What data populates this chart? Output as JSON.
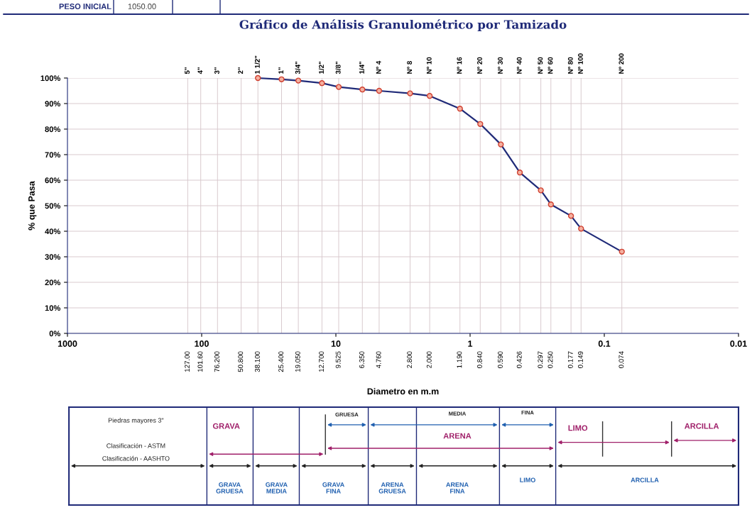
{
  "chart_data": {
    "type": "line",
    "title": "Gráfico de Análisis Granulométrico por Tamizado",
    "xlabel": "Diametro en m.m",
    "ylabel": "% que Pasa",
    "x": [
      38.1,
      25.4,
      19.05,
      12.7,
      9.525,
      6.35,
      4.76,
      2.8,
      2.0,
      1.19,
      0.84,
      0.59,
      0.426,
      0.297,
      0.25,
      0.177,
      0.149,
      0.074
    ],
    "series": [
      {
        "color": "#1f2a78",
        "values": [
          100,
          99.5,
          99,
          98,
          96.5,
          95.5,
          95,
          94,
          93,
          88,
          82,
          74,
          63,
          56,
          50.5,
          46,
          41,
          32
        ]
      }
    ],
    "log": "x",
    "marker": "circle",
    "line_style": "solid",
    "grid": "y",
    "xlim": [
      1000,
      0.01
    ],
    "xticks": [
      1000,
      100,
      10,
      1,
      0.1,
      0.01
    ],
    "ylim": [
      0,
      100
    ],
    "yticks": [
      {
        "value": 0,
        "label": "0%"
      },
      {
        "value": 10,
        "label": "10%"
      },
      {
        "value": 20,
        "label": "20%"
      },
      {
        "value": 30,
        "label": "30%"
      },
      {
        "value": 40,
        "label": "40%"
      },
      {
        "value": 50,
        "label": "50%"
      },
      {
        "value": 60,
        "label": "60%"
      },
      {
        "value": 70,
        "label": "70%"
      },
      {
        "value": 80,
        "label": "80%"
      },
      {
        "value": 90,
        "label": "90%"
      },
      {
        "value": 100,
        "label": "100%"
      }
    ],
    "ref_lines": [
      {
        "axis": "x",
        "value": 127,
        "label": "127.00"
      },
      {
        "axis": "x",
        "value": 101.6,
        "label": "101.60"
      },
      {
        "axis": "x",
        "value": 76.2,
        "label": "76.200"
      },
      {
        "axis": "x",
        "value": 50.8,
        "label": "50.800"
      },
      {
        "axis": "x",
        "value": 38.1,
        "label": "38.100"
      },
      {
        "axis": "x",
        "value": 25.4,
        "label": "25.400"
      },
      {
        "axis": "x",
        "value": 19.05,
        "label": "19.050"
      },
      {
        "axis": "x",
        "value": 12.7,
        "label": "12.700"
      },
      {
        "axis": "x",
        "value": 9.525,
        "label": "9.525"
      },
      {
        "axis": "x",
        "value": 6.35,
        "label": "6.350"
      },
      {
        "axis": "x",
        "value": 4.76,
        "label": "4.760"
      },
      {
        "axis": "x",
        "value": 2.8,
        "label": "2.800"
      },
      {
        "axis": "x",
        "value": 2.0,
        "label": "2.000"
      },
      {
        "axis": "x",
        "value": 1.19,
        "label": "1.190"
      },
      {
        "axis": "x",
        "value": 0.84,
        "label": "0.840"
      },
      {
        "axis": "x",
        "value": 0.59,
        "label": "0.590"
      },
      {
        "axis": "x",
        "value": 0.426,
        "label": "0.426"
      },
      {
        "axis": "x",
        "value": 0.297,
        "label": "0.297"
      },
      {
        "axis": "x",
        "value": 0.25,
        "label": "0.250"
      },
      {
        "axis": "x",
        "value": 0.177,
        "label": "0.177"
      },
      {
        "axis": "x",
        "value": 0.149,
        "label": "0.149"
      },
      {
        "axis": "x",
        "value": 0.074,
        "label": "0.074"
      }
    ],
    "annotations": [
      "PESO INICIAL",
      "1050.00",
      "Piedras mayores 3\"",
      "Clasificación - ASTM",
      "Clasificación - AASHTO",
      "GRUESA",
      "MEDIA",
      "FINA",
      "GRAVA",
      "ARENA",
      "LIMO",
      "ARCILLA",
      "GRAVA GRUESA",
      "GRAVA MEDIA",
      "GRAVA FINA",
      "ARENA GRUESA",
      "ARENA FINA",
      "LIMO",
      "ARCILLA",
      {
        "text": "5\"",
        "x": 127,
        "y": 100
      },
      {
        "text": "4\"",
        "x": 101.6,
        "y": 100
      },
      {
        "text": "3\"",
        "x": 76.2,
        "y": 100
      },
      {
        "text": "2\"",
        "x": 50.8,
        "y": 100
      },
      {
        "text": "1 1/2\"",
        "x": 38.1,
        "y": 100
      },
      {
        "text": "1\"",
        "x": 25.4,
        "y": 100
      },
      {
        "text": "3/4\"",
        "x": 19.05,
        "y": 100
      },
      {
        "text": "1/2\"",
        "x": 12.7,
        "y": 100
      },
      {
        "text": "3/8\"",
        "x": 9.525,
        "y": 100
      },
      {
        "text": "1/4\"",
        "x": 6.35,
        "y": 100
      },
      {
        "text": "Nº 4",
        "x": 4.76,
        "y": 100
      },
      {
        "text": "Nº 8",
        "x": 2.8,
        "y": 100
      },
      {
        "text": "Nº 10",
        "x": 2.0,
        "y": 100
      },
      {
        "text": "Nº 16",
        "x": 1.19,
        "y": 100
      },
      {
        "text": "Nº 20",
        "x": 0.84,
        "y": 100
      },
      {
        "text": "Nº 30",
        "x": 0.59,
        "y": 100
      },
      {
        "text": "Nº 40",
        "x": 0.426,
        "y": 100
      },
      {
        "text": "Nº 50",
        "x": 0.297,
        "y": 100
      },
      {
        "text": "Nº 60",
        "x": 0.25,
        "y": 100
      },
      {
        "text": "Nº 80",
        "x": 0.177,
        "y": 100
      },
      {
        "text": "Nº 100",
        "x": 0.149,
        "y": 100
      },
      {
        "text": "Nº 200",
        "x": 0.074,
        "y": 100
      }
    ]
  }
}
